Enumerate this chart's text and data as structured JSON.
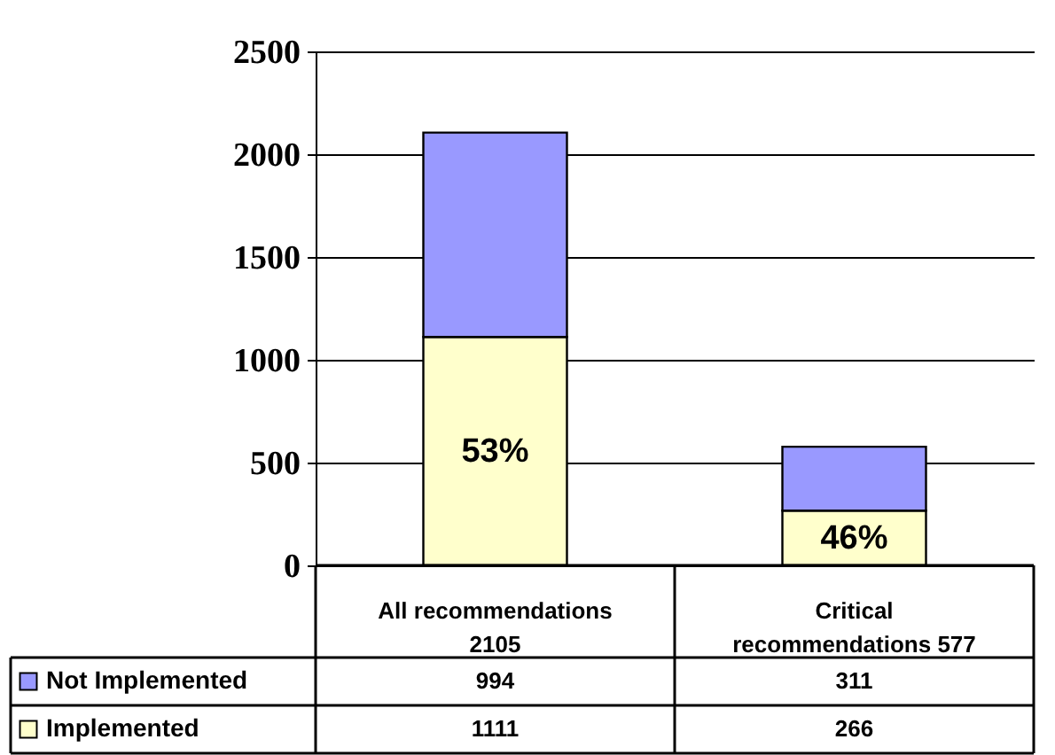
{
  "chart_data": {
    "type": "bar",
    "stacked": true,
    "categories": [
      "All recommendations 2105",
      "Critical recommendations 577"
    ],
    "series": [
      {
        "name": "Implemented",
        "color": "#ffffcc",
        "values": [
          1111,
          266
        ]
      },
      {
        "name": "Not Implemented",
        "color": "#9999ff",
        "values": [
          994,
          311
        ]
      }
    ],
    "annotations": [
      "53%",
      "46%"
    ],
    "ylim": [
      0,
      2500
    ],
    "yticks": [
      0,
      500,
      1000,
      1500,
      2000,
      2500
    ],
    "grid": "y",
    "legend": "bottom left",
    "data_labels": true
  }
}
